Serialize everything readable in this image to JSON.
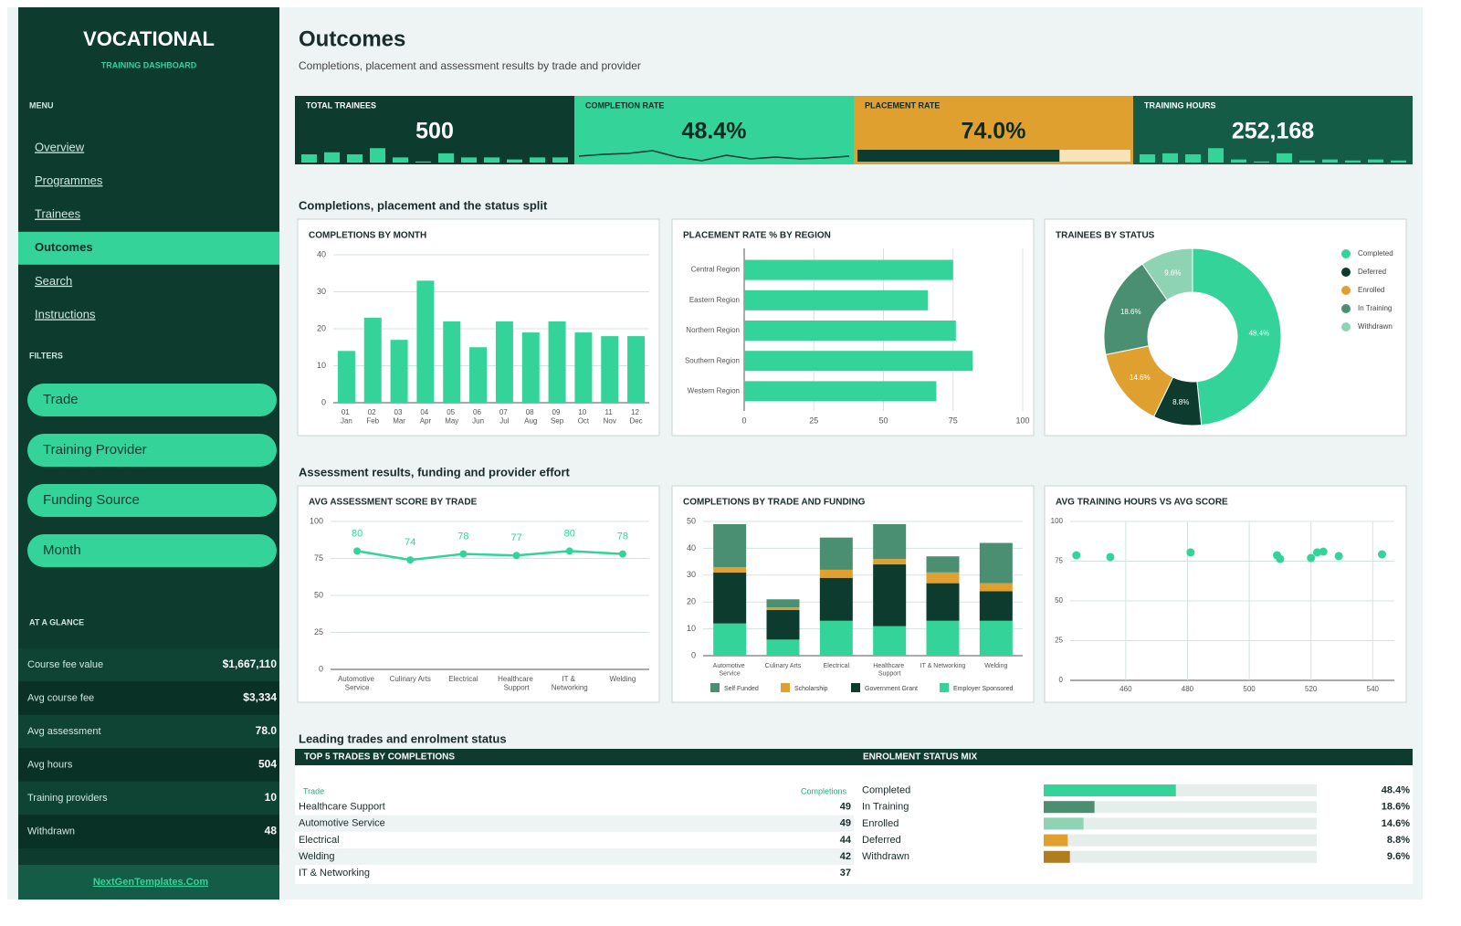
{
  "sidebar": {
    "brand": "VOCATIONAL",
    "tagline": "TRAINING DASHBOARD",
    "menu_label": "MENU",
    "menu": [
      "Overview",
      "Programmes",
      "Trainees",
      "Outcomes",
      "Search",
      "Instructions"
    ],
    "active": "Outcomes",
    "filters_label": "FILTERS",
    "filters": [
      "Trade",
      "Training Provider",
      "Funding Source",
      "Month"
    ],
    "glance_label": "AT A GLANCE",
    "glance": [
      {
        "label": "Course fee value",
        "value": "$1,667,110"
      },
      {
        "label": "Avg course fee",
        "value": "$3,334"
      },
      {
        "label": "Avg assessment",
        "value": "78.0"
      },
      {
        "label": "Avg hours",
        "value": "504"
      },
      {
        "label": "Training providers",
        "value": "10"
      },
      {
        "label": "Withdrawn",
        "value": "48"
      }
    ],
    "footer_link": "NextGenTemplates.Com"
  },
  "header": {
    "title": "Outcomes",
    "subtitle": "Completions, placement and assessment results by trade and provider"
  },
  "kpis": [
    {
      "label": "TOTAL TRAINEES",
      "value": "500",
      "color": "#0d3b2e",
      "text_color": "#ffffff",
      "spark_type": "bars",
      "spark_color": "#34d399",
      "spark": [
        8,
        10,
        8,
        14,
        5,
        1,
        9,
        5,
        5,
        3,
        5,
        5
      ],
      "ylim": [
        0,
        16
      ]
    },
    {
      "label": "COMPLETION RATE",
      "value": "48.4%",
      "color": "#34d399",
      "text_color": "#0d2b22",
      "spark_type": "line",
      "spark_color": "#0d3b2e",
      "spark": [
        9,
        11,
        12,
        15,
        8,
        4,
        10,
        6,
        8,
        6,
        7,
        9
      ],
      "ylim": [
        0,
        20
      ]
    },
    {
      "label": "PLACEMENT RATE",
      "value": "74.0%",
      "color": "#e0a030",
      "text_color": "#0d2b22",
      "spark_type": "progress",
      "spark_color": "#0d3b2e",
      "track_color": "#f7e3b8",
      "progress": 74.0,
      "xlim": [
        0,
        100
      ]
    },
    {
      "label": "TRAINING HOURS",
      "value": "252,168",
      "color": "#145c45",
      "text_color": "#ffffff",
      "spark_type": "bars",
      "spark_color": "#34d399",
      "spark": [
        8,
        9,
        8,
        14,
        3,
        1,
        9,
        2,
        3,
        2,
        3,
        2
      ],
      "ylim": [
        0,
        16
      ]
    }
  ],
  "sections": [
    "Completions, placement and the status split",
    "Assessment results, funding and provider effort",
    "Leading trades and enrolment status"
  ],
  "chart_data": [
    {
      "type": "bar",
      "title": "COMPLETIONS BY MONTH",
      "categories": [
        "01 Jan",
        "02 Feb",
        "03 Mar",
        "04 Apr",
        "05 May",
        "06 Jun",
        "07 Jul",
        "08 Aug",
        "09 Sep",
        "10 Oct",
        "11 Nov",
        "12 Dec"
      ],
      "values": [
        14,
        23,
        17,
        33,
        22,
        15,
        22,
        19,
        22,
        19,
        18,
        18
      ],
      "color": "#34d399",
      "ylim": [
        0,
        40
      ],
      "yticks": [
        0,
        10,
        20,
        30,
        40
      ],
      "grid": true
    },
    {
      "type": "bar",
      "orientation": "horizontal",
      "title": "PLACEMENT RATE % BY REGION",
      "categories": [
        "Central Region",
        "Eastern Region",
        "Northern Region",
        "Southern Region",
        "Western Region"
      ],
      "values": [
        75,
        66,
        76,
        82,
        69
      ],
      "color": "#34d399",
      "xlim": [
        0,
        100
      ],
      "xticks": [
        0,
        25,
        50,
        75,
        100
      ],
      "grid": true
    },
    {
      "type": "donut",
      "title": "TRAINEES BY STATUS",
      "categories": [
        "Completed",
        "Deferred",
        "Enrolled",
        "In Training",
        "Withdrawn"
      ],
      "values": [
        48.4,
        8.8,
        14.6,
        18.6,
        9.6
      ],
      "value_labels": [
        "48.4%",
        "8.8%",
        "14.6%",
        "18.6%",
        "9.6%"
      ],
      "colors": [
        "#34d399",
        "#0d3b2e",
        "#e0a030",
        "#4a8f72",
        "#8fd3b5"
      ],
      "legend": "right"
    },
    {
      "type": "line",
      "title": "AVG ASSESSMENT SCORE BY TRADE",
      "categories": [
        "Automotive Service",
        "Culinary Arts",
        "Electrical",
        "Healthcare Support",
        "IT & Networking",
        "Welding"
      ],
      "values": [
        80,
        74,
        78,
        77,
        80,
        78
      ],
      "color": "#34d399",
      "ylim": [
        0,
        100
      ],
      "yticks": [
        0,
        25,
        50,
        75,
        100
      ],
      "grid": true
    },
    {
      "type": "bar",
      "stacked": true,
      "title": "COMPLETIONS BY TRADE AND FUNDING",
      "categories": [
        "Automotive Service",
        "Culinary Arts",
        "Electrical",
        "Healthcare Support",
        "IT & Networking",
        "Welding"
      ],
      "series": [
        {
          "name": "Self Funded",
          "color": "#4a8f72",
          "values": [
            16,
            3,
            12,
            13,
            6,
            15
          ]
        },
        {
          "name": "Scholarship",
          "color": "#e0a030",
          "values": [
            2,
            1,
            3,
            2,
            4,
            3
          ]
        },
        {
          "name": "Government Grant",
          "color": "#0d3b2e",
          "values": [
            19,
            11,
            16,
            23,
            14,
            11
          ]
        },
        {
          "name": "Employer Sponsored",
          "color": "#34d399",
          "values": [
            12,
            6,
            13,
            11,
            13,
            13
          ]
        }
      ],
      "ylim": [
        0,
        50
      ],
      "yticks": [
        0,
        10,
        20,
        30,
        40,
        50
      ],
      "grid": true,
      "legend": "bottom"
    },
    {
      "type": "scatter",
      "title": "AVG TRAINING HOURS VS AVG SCORE",
      "x": [
        444,
        455,
        481,
        509,
        510,
        520,
        522,
        524,
        529,
        543
      ],
      "values": [
        78.7,
        77.6,
        80.5,
        78.7,
        76.4,
        77.0,
        80.5,
        81.0,
        78.2,
        79.3
      ],
      "color": "#34d399",
      "xlim": [
        442,
        547
      ],
      "xticks": [
        460,
        480,
        500,
        520,
        540
      ],
      "ylim": [
        0,
        100
      ],
      "yticks": [
        0,
        25,
        50,
        75,
        100
      ],
      "grid": true
    }
  ],
  "top_trades": {
    "title": "TOP 5 TRADES BY COMPLETIONS",
    "columns": [
      "Trade",
      "Completions"
    ],
    "rows": [
      [
        "Healthcare Support",
        "49"
      ],
      [
        "Automotive Service",
        "49"
      ],
      [
        "Electrical",
        "44"
      ],
      [
        "Welding",
        "42"
      ],
      [
        "IT & Networking",
        "37"
      ]
    ]
  },
  "status_mix": {
    "title": "ENROLMENT STATUS MIX",
    "categories": [
      "Completed",
      "In Training",
      "Enrolled",
      "Deferred",
      "Withdrawn"
    ],
    "values": [
      48.4,
      18.6,
      14.6,
      8.8,
      9.6
    ],
    "value_labels": [
      "48.4%",
      "18.6%",
      "14.6%",
      "8.8%",
      "9.6%"
    ],
    "colors": [
      "#34d399",
      "#4a8f72",
      "#8fd3b5",
      "#e0a030",
      "#b07d1e"
    ],
    "track_color": "#e6eeec",
    "xlim": [
      0,
      100
    ]
  }
}
